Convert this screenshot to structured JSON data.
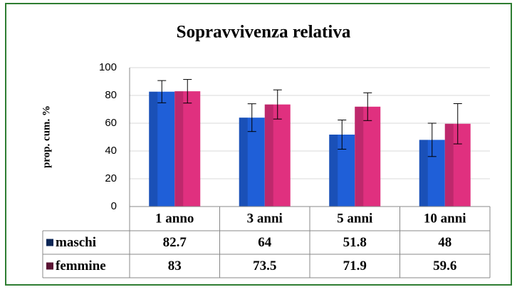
{
  "chart_data": {
    "type": "bar",
    "title": "Sopravvivenza relativa",
    "y_label": "prop. cum. %",
    "categories": [
      "1 anno",
      "3 anni",
      "5 anni",
      "10 anni"
    ],
    "series": [
      {
        "name": "maschi",
        "color": "#1f5fd8",
        "values": [
          82.7,
          64,
          51.8,
          48
        ],
        "errors": [
          8,
          10,
          10.5,
          12
        ]
      },
      {
        "name": "femmine",
        "color": "#e0307f",
        "values": [
          83,
          73.5,
          71.9,
          59.6
        ],
        "errors": [
          8.5,
          10.5,
          10,
          14.5
        ]
      }
    ],
    "ylim": [
      0,
      100
    ],
    "yticks": [
      0,
      20,
      40,
      60,
      80,
      100
    ],
    "grid": true
  }
}
